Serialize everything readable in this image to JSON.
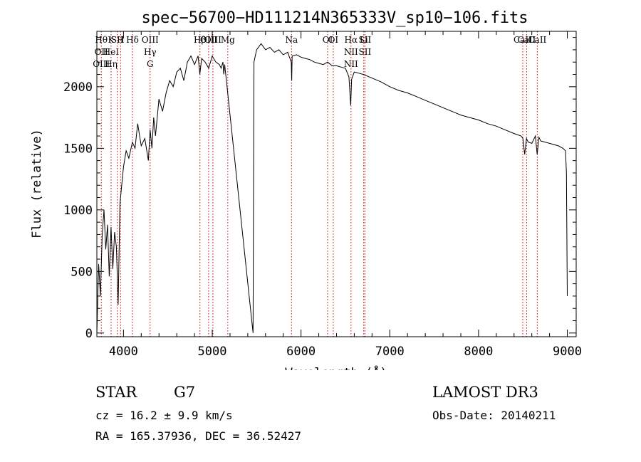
{
  "chart_data": {
    "type": "line",
    "title": "spec−56700−HD111214N365333V_sp10−106.fits",
    "xlabel": "Wavelength (Å)",
    "ylabel": "Flux (relative)",
    "xlim": [
      3700,
      9100
    ],
    "ylim": [
      -30,
      2450
    ],
    "x_ticks": [
      4000,
      5000,
      6000,
      7000,
      8000,
      9000
    ],
    "y_ticks": [
      0,
      500,
      1000,
      1500,
      2000
    ],
    "grid": false,
    "series": [
      {
        "name": "spectrum",
        "x": [
          3700,
          3720,
          3740,
          3760,
          3780,
          3800,
          3820,
          3840,
          3860,
          3880,
          3900,
          3920,
          3940,
          3960,
          3980,
          4000,
          4030,
          4060,
          4100,
          4130,
          4160,
          4200,
          4240,
          4280,
          4300,
          4320,
          4340,
          4360,
          4400,
          4440,
          4480,
          4520,
          4560,
          4600,
          4640,
          4680,
          4720,
          4760,
          4800,
          4840,
          4860,
          4880,
          4920,
          4960,
          5000,
          5040,
          5080,
          5100,
          5120,
          5130,
          5140,
          5460,
          5470,
          5500,
          5550,
          5600,
          5650,
          5700,
          5750,
          5800,
          5850,
          5890,
          5895,
          5900,
          5950,
          6000,
          6050,
          6100,
          6150,
          6200,
          6250,
          6300,
          6350,
          6400,
          6450,
          6500,
          6540,
          6560,
          6570,
          6600,
          6650,
          6700,
          6800,
          6900,
          7000,
          7100,
          7200,
          7300,
          7400,
          7500,
          7600,
          7700,
          7800,
          7900,
          8000,
          8100,
          8200,
          8300,
          8400,
          8480,
          8500,
          8520,
          8540,
          8560,
          8600,
          8640,
          8660,
          8680,
          8700,
          8800,
          8900,
          8950,
          8980,
          8990,
          9000
        ],
        "y": [
          0,
          560,
          300,
          800,
          1000,
          680,
          880,
          460,
          860,
          520,
          820,
          700,
          230,
          1050,
          1200,
          1350,
          1480,
          1420,
          1550,
          1500,
          1700,
          1520,
          1580,
          1400,
          1650,
          1500,
          1750,
          1600,
          1900,
          1800,
          1950,
          2050,
          2000,
          2120,
          2150,
          2050,
          2200,
          2250,
          2180,
          2250,
          2100,
          2230,
          2200,
          2150,
          2250,
          2200,
          2180,
          2150,
          2200,
          2100,
          2180,
          0,
          2200,
          2300,
          2350,
          2300,
          2320,
          2280,
          2300,
          2260,
          2280,
          2200,
          2050,
          2250,
          2260,
          2240,
          2230,
          2220,
          2200,
          2190,
          2180,
          2200,
          2170,
          2170,
          2160,
          2150,
          2080,
          1850,
          2060,
          2120,
          2110,
          2100,
          2070,
          2040,
          2000,
          1970,
          1950,
          1920,
          1890,
          1860,
          1830,
          1800,
          1770,
          1750,
          1730,
          1700,
          1680,
          1650,
          1620,
          1600,
          1580,
          1450,
          1580,
          1550,
          1540,
          1600,
          1450,
          1590,
          1560,
          1540,
          1520,
          1500,
          1480,
          1300,
          300
        ]
      }
    ],
    "line_markers": [
      {
        "x": 3750,
        "label": "Hθ"
      },
      {
        "x": 3750,
        "label": "OII"
      },
      {
        "x": 3750,
        "label": "OIII"
      },
      {
        "x": 3860,
        "label": "K"
      },
      {
        "x": 3860,
        "label": "HeI"
      },
      {
        "x": 3860,
        "label": "Hη"
      },
      {
        "x": 3930,
        "label": "SII"
      },
      {
        "x": 3968,
        "label": "H"
      },
      {
        "x": 4101,
        "label": "Hδ"
      },
      {
        "x": 4300,
        "label": "OIII"
      },
      {
        "x": 4300,
        "label": "Hγ"
      },
      {
        "x": 4300,
        "label": "G"
      },
      {
        "x": 4861,
        "label": "Hβ"
      },
      {
        "x": 4959,
        "label": "OIII"
      },
      {
        "x": 5007,
        "label": "OIII"
      },
      {
        "x": 5175,
        "label": "Mg"
      },
      {
        "x": 5893,
        "label": "Na"
      },
      {
        "x": 6300,
        "label": "OI"
      },
      {
        "x": 6363,
        "label": "OI"
      },
      {
        "x": 6563,
        "label": "Hα"
      },
      {
        "x": 6563,
        "label": "NII"
      },
      {
        "x": 6563,
        "label": "NII"
      },
      {
        "x": 6707,
        "label": "Li"
      },
      {
        "x": 6720,
        "label": "SII"
      },
      {
        "x": 6720,
        "label": "SII"
      },
      {
        "x": 8498,
        "label": "CaII"
      },
      {
        "x": 8542,
        "label": "CaII"
      },
      {
        "x": 8662,
        "label": "CaII"
      }
    ]
  },
  "info": {
    "object_class": "STAR",
    "subclass": "G7",
    "survey": "LAMOST DR3",
    "redshift": "cz = 16.2 ± 9.9 km/s",
    "obs_date": "Obs-Date: 20140211",
    "coords": "RA = 165.37936, DEC =  36.52427"
  }
}
